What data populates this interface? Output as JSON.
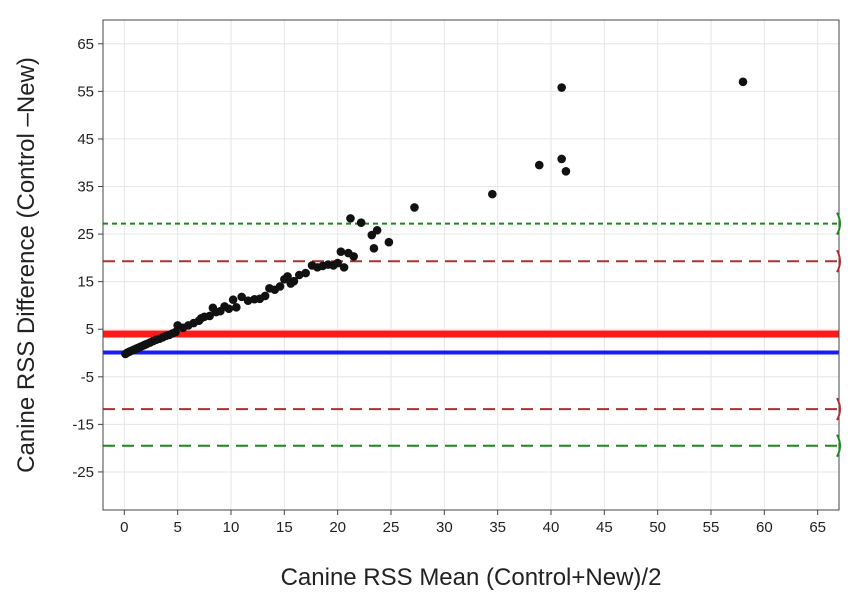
{
  "chart_data": {
    "type": "scatter",
    "xlabel": "Canine RSS Mean (Control+New)/2",
    "ylabel": "Canine RSS Difference (Control –New)",
    "xlim": [
      -2,
      67
    ],
    "ylim": [
      -33,
      70
    ],
    "xticks": [
      0,
      5,
      10,
      15,
      20,
      25,
      30,
      35,
      40,
      45,
      50,
      55,
      60,
      65
    ],
    "yticks": [
      65,
      55,
      45,
      35,
      25,
      15,
      5,
      -5,
      -15,
      -25
    ],
    "grid": true,
    "legend": "none",
    "points": [
      {
        "x": 0.1,
        "y": -0.2
      },
      {
        "x": 0.3,
        "y": 0.1
      },
      {
        "x": 0.5,
        "y": 0.3
      },
      {
        "x": 0.7,
        "y": 0.5
      },
      {
        "x": 0.9,
        "y": 0.7
      },
      {
        "x": 1.1,
        "y": 0.9
      },
      {
        "x": 1.3,
        "y": 1.1
      },
      {
        "x": 1.5,
        "y": 1.3
      },
      {
        "x": 1.7,
        "y": 1.5
      },
      {
        "x": 1.9,
        "y": 1.7
      },
      {
        "x": 2.1,
        "y": 1.9
      },
      {
        "x": 2.4,
        "y": 2.2
      },
      {
        "x": 2.7,
        "y": 2.5
      },
      {
        "x": 3.0,
        "y": 2.8
      },
      {
        "x": 3.3,
        "y": 3.0
      },
      {
        "x": 3.6,
        "y": 3.3
      },
      {
        "x": 3.9,
        "y": 3.6
      },
      {
        "x": 4.2,
        "y": 3.8
      },
      {
        "x": 4.5,
        "y": 4.1
      },
      {
        "x": 4.8,
        "y": 4.4
      },
      {
        "x": 5.0,
        "y": 5.8
      },
      {
        "x": 5.5,
        "y": 5.3
      },
      {
        "x": 6.0,
        "y": 5.8
      },
      {
        "x": 6.5,
        "y": 6.3
      },
      {
        "x": 7.0,
        "y": 6.8
      },
      {
        "x": 7.2,
        "y": 7.3
      },
      {
        "x": 7.5,
        "y": 7.6
      },
      {
        "x": 8.0,
        "y": 7.8
      },
      {
        "x": 8.3,
        "y": 9.5
      },
      {
        "x": 8.6,
        "y": 8.6
      },
      {
        "x": 9.0,
        "y": 8.8
      },
      {
        "x": 9.4,
        "y": 9.8
      },
      {
        "x": 9.8,
        "y": 9.3
      },
      {
        "x": 10.2,
        "y": 11.2
      },
      {
        "x": 10.5,
        "y": 9.6
      },
      {
        "x": 11.0,
        "y": 11.8
      },
      {
        "x": 11.6,
        "y": 11.0
      },
      {
        "x": 12.2,
        "y": 11.3
      },
      {
        "x": 12.7,
        "y": 11.4
      },
      {
        "x": 13.2,
        "y": 12.0
      },
      {
        "x": 13.6,
        "y": 13.6
      },
      {
        "x": 14.1,
        "y": 13.3
      },
      {
        "x": 14.6,
        "y": 14.0
      },
      {
        "x": 15.0,
        "y": 15.5
      },
      {
        "x": 15.3,
        "y": 16.1
      },
      {
        "x": 15.6,
        "y": 14.6
      },
      {
        "x": 15.9,
        "y": 15.1
      },
      {
        "x": 16.4,
        "y": 16.4
      },
      {
        "x": 17.0,
        "y": 16.8
      },
      {
        "x": 17.6,
        "y": 18.4
      },
      {
        "x": 18.1,
        "y": 18.0
      },
      {
        "x": 18.6,
        "y": 18.3
      },
      {
        "x": 19.1,
        "y": 18.6
      },
      {
        "x": 19.6,
        "y": 18.4
      },
      {
        "x": 20.0,
        "y": 18.9
      },
      {
        "x": 20.3,
        "y": 21.3
      },
      {
        "x": 20.6,
        "y": 18.0
      },
      {
        "x": 21.0,
        "y": 21.0
      },
      {
        "x": 21.2,
        "y": 28.3
      },
      {
        "x": 21.5,
        "y": 20.3
      },
      {
        "x": 22.2,
        "y": 27.4
      },
      {
        "x": 23.2,
        "y": 24.8
      },
      {
        "x": 23.4,
        "y": 22.0
      },
      {
        "x": 23.7,
        "y": 25.8
      },
      {
        "x": 24.8,
        "y": 23.3
      },
      {
        "x": 27.2,
        "y": 30.6
      },
      {
        "x": 34.5,
        "y": 33.4
      },
      {
        "x": 38.9,
        "y": 39.5
      },
      {
        "x": 41.0,
        "y": 55.8
      },
      {
        "x": 41.0,
        "y": 40.8
      },
      {
        "x": 41.4,
        "y": 38.2
      },
      {
        "x": 58.0,
        "y": 57.0
      }
    ],
    "reference_lines": [
      {
        "y": 27.2,
        "color": "#1a8a1a",
        "style": "dotted",
        "width": 2
      },
      {
        "y": 19.3,
        "color": "#b03030",
        "style": "dashed",
        "width": 2
      },
      {
        "y": 4.0,
        "color": "#ff1a1a",
        "style": "solid",
        "width": 7
      },
      {
        "y": 0.1,
        "color": "#1a1aff",
        "style": "solid",
        "width": 4
      },
      {
        "y": -11.8,
        "color": "#b03030",
        "style": "dashed",
        "width": 2
      },
      {
        "y": -19.5,
        "color": "#1a8a1a",
        "style": "dashed",
        "width": 2
      }
    ],
    "colors": {
      "points": "#111111",
      "grid": "#e6e6e6",
      "frame": "#444444"
    }
  }
}
